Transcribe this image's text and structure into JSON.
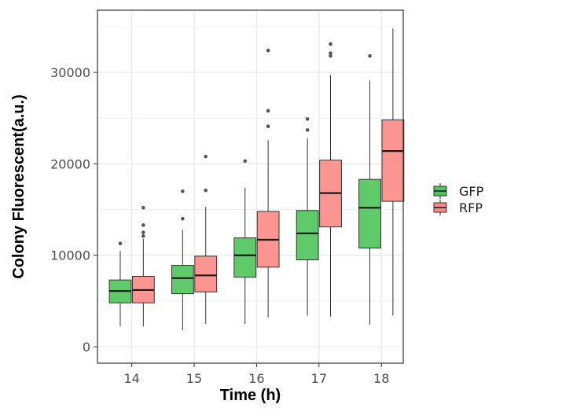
{
  "chart_data": {
    "type": "boxplot",
    "xlabel": "Time (h)",
    "ylabel": "Colony Fluorescent(a.u.)",
    "categories": [
      "14",
      "15",
      "16",
      "17",
      "18"
    ],
    "y_ticks": [
      0,
      10000,
      20000,
      30000
    ],
    "ylim": [
      -1800,
      36800
    ],
    "grid": true,
    "legend_position": "right",
    "series": [
      {
        "name": "GFP",
        "color": "#4fc45a",
        "boxes": [
          {
            "category": "14",
            "whisker_low": 2200,
            "q1": 4800,
            "median": 6100,
            "q3": 7300,
            "whisker_high": 10500,
            "outliers": [
              11300
            ]
          },
          {
            "category": "15",
            "whisker_low": 1800,
            "q1": 5800,
            "median": 7500,
            "q3": 8900,
            "whisker_high": 12800,
            "outliers": [
              14000,
              17000
            ]
          },
          {
            "category": "16",
            "whisker_low": 2500,
            "q1": 7600,
            "median": 10000,
            "q3": 11900,
            "whisker_high": 17400,
            "outliers": [
              20300
            ]
          },
          {
            "category": "17",
            "whisker_low": 3400,
            "q1": 9500,
            "median": 12400,
            "q3": 14900,
            "whisker_high": 22800,
            "outliers": [
              23700,
              24900
            ]
          },
          {
            "category": "18",
            "whisker_low": 2400,
            "q1": 10800,
            "median": 15200,
            "q3": 18300,
            "whisker_high": 29100,
            "outliers": [
              31800
            ]
          }
        ]
      },
      {
        "name": "RFP",
        "color": "#f98a86",
        "boxes": [
          {
            "category": "14",
            "whisker_low": 2200,
            "q1": 4800,
            "median": 6200,
            "q3": 7700,
            "whisker_high": 11800,
            "outliers": [
              12100,
              12500,
              13300,
              15200
            ]
          },
          {
            "category": "15",
            "whisker_low": 2500,
            "q1": 6000,
            "median": 7800,
            "q3": 9900,
            "whisker_high": 15300,
            "outliers": [
              17100,
              20800
            ]
          },
          {
            "category": "16",
            "whisker_low": 3200,
            "q1": 8700,
            "median": 11700,
            "q3": 14800,
            "whisker_high": 22600,
            "outliers": [
              24100,
              25800,
              32400
            ]
          },
          {
            "category": "17",
            "whisker_low": 3300,
            "q1": 13100,
            "median": 16800,
            "q3": 20400,
            "whisker_high": 29700,
            "outliers": [
              31800,
              32100,
              33100
            ]
          },
          {
            "category": "18",
            "whisker_low": 3400,
            "q1": 15900,
            "median": 21400,
            "q3": 24800,
            "whisker_high": 34800,
            "outliers": []
          }
        ]
      }
    ]
  }
}
